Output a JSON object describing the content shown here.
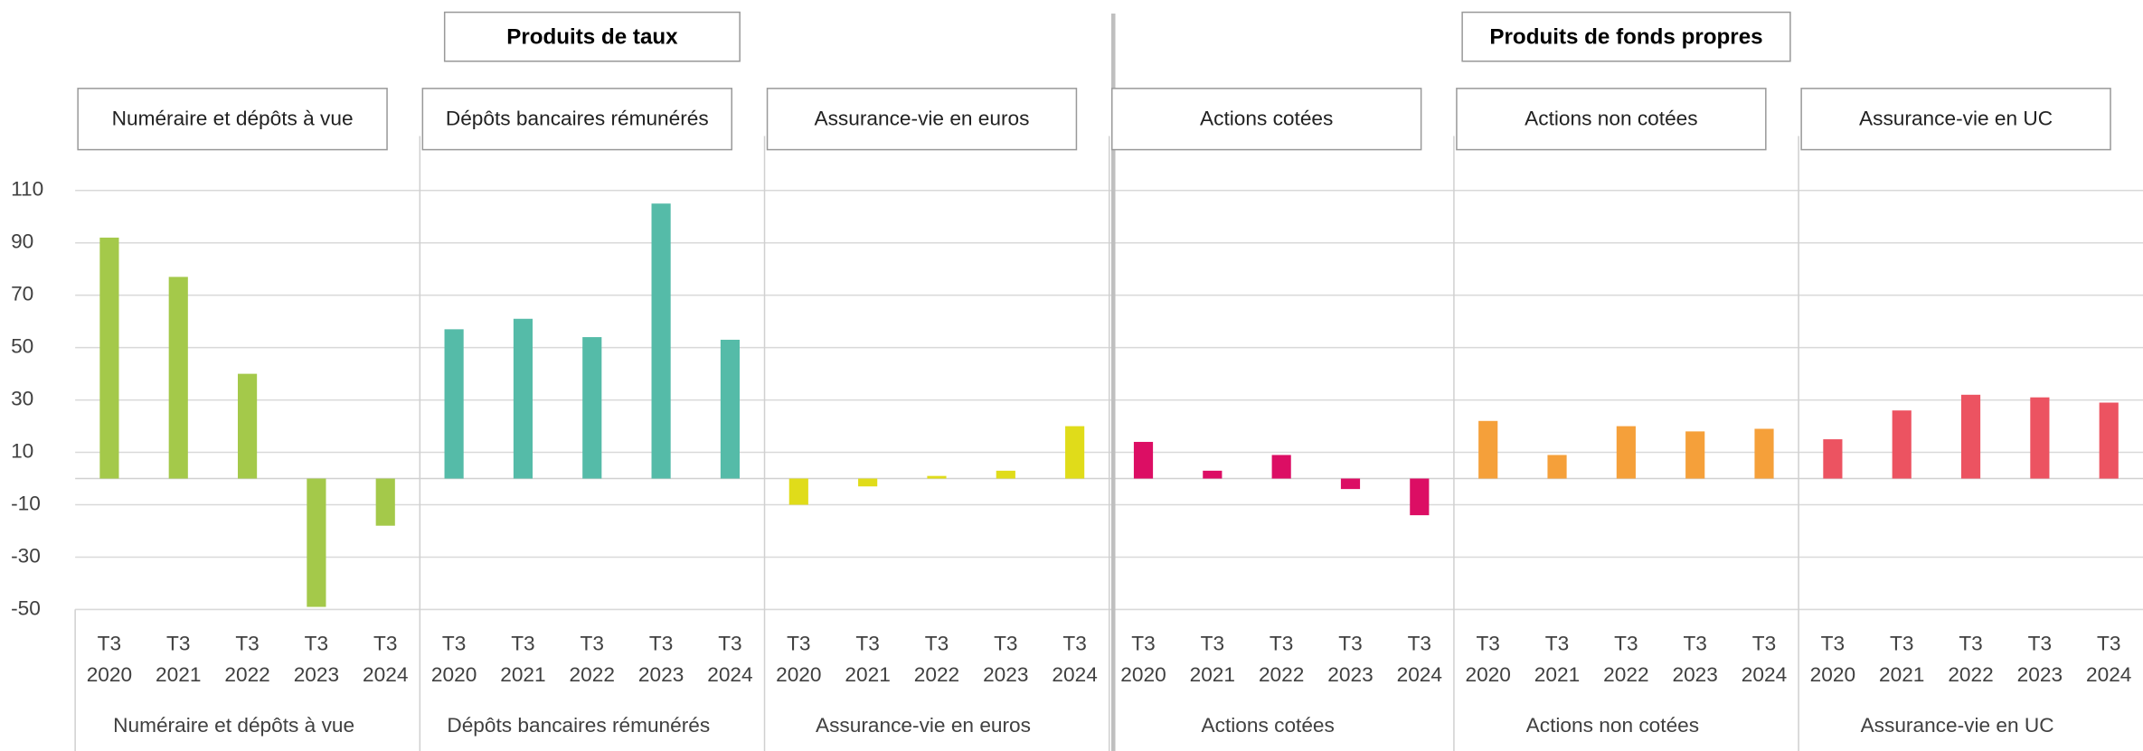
{
  "chart_data": {
    "type": "bar",
    "categories": [
      [
        "T3",
        "2020"
      ],
      [
        "T3",
        "2021"
      ],
      [
        "T3",
        "2022"
      ],
      [
        "T3",
        "2023"
      ],
      [
        "T3",
        "2024"
      ]
    ],
    "ylim": [
      -50,
      110
    ],
    "yticks": [
      -50,
      -30,
      -10,
      10,
      30,
      50,
      70,
      90,
      110
    ],
    "grid": true,
    "sections": [
      {
        "title": "Produits de taux",
        "series": [
          {
            "name": "Numéraire et dépôts à vue",
            "color": "#a4c94a",
            "values": [
              92,
              77,
              40,
              -49,
              -18
            ]
          },
          {
            "name": "Dépôts bancaires rémunérés",
            "color": "#55bba8",
            "values": [
              57,
              61,
              54,
              105,
              53
            ]
          },
          {
            "name": "Assurance-vie en euros",
            "color": "#e0dc1a",
            "values": [
              -10,
              -3,
              1,
              3,
              20
            ]
          }
        ]
      },
      {
        "title": "Produits de fonds propres",
        "series": [
          {
            "name": "Actions cotées",
            "color": "#dc0e64",
            "values": [
              14,
              3,
              9,
              -4,
              -14
            ]
          },
          {
            "name": "Actions non cotées",
            "color": "#f5a03a",
            "values": [
              22,
              9,
              20,
              18,
              19
            ]
          },
          {
            "name": "Assurance-vie en UC",
            "color": "#ec5361",
            "values": [
              15,
              26,
              32,
              31,
              29
            ]
          }
        ]
      }
    ]
  }
}
